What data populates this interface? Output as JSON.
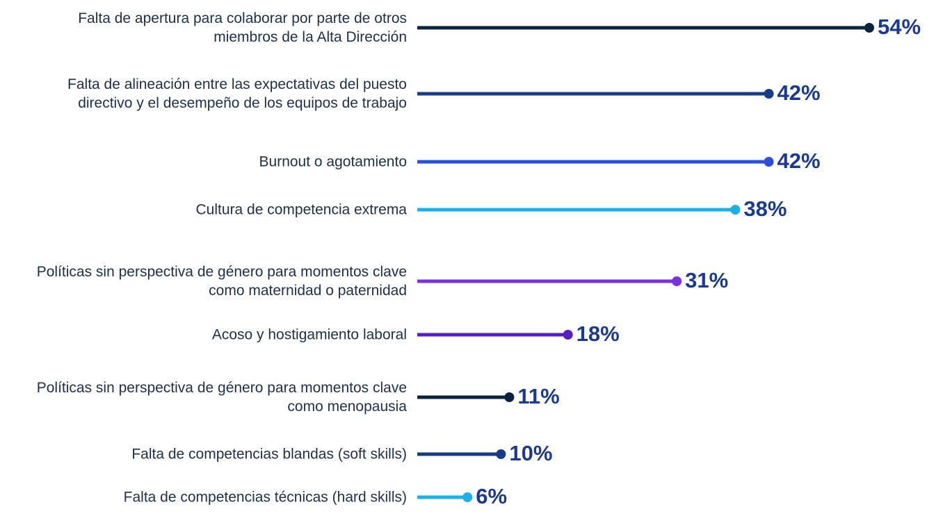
{
  "chart_data": {
    "type": "lollipop",
    "categories": [
      "Falta de apertura para colaborar por parte de otros miembros de la Alta Dirección",
      "Falta de alineación entre las expectativas del puesto directivo y el desempeño de los equipos de trabajo",
      "Burnout o agotamiento",
      "Cultura de competencia extrema",
      "Políticas sin perspectiva de género para momentos clave como maternidad o paternidad",
      "Acoso y hostigamiento laboral",
      "Políticas sin perspectiva de género para momentos clave como menopausia",
      "Falta de competencias blandas (soft skills)",
      "Falta de competencias técnicas (hard skills)"
    ],
    "values": [
      54,
      42,
      42,
      38,
      31,
      18,
      11,
      10,
      6
    ],
    "value_labels": [
      "54%",
      "42%",
      "42%",
      "38%",
      "31%",
      "18%",
      "11%",
      "10%",
      "6%"
    ],
    "colors": [
      "#0c233f",
      "#163c8a",
      "#2a4fdb",
      "#1bb0ea",
      "#7b2fe0",
      "#5a1fc0",
      "#0c233f",
      "#163c8a",
      "#1bb0ea"
    ],
    "xlim": [
      0,
      54
    ]
  }
}
